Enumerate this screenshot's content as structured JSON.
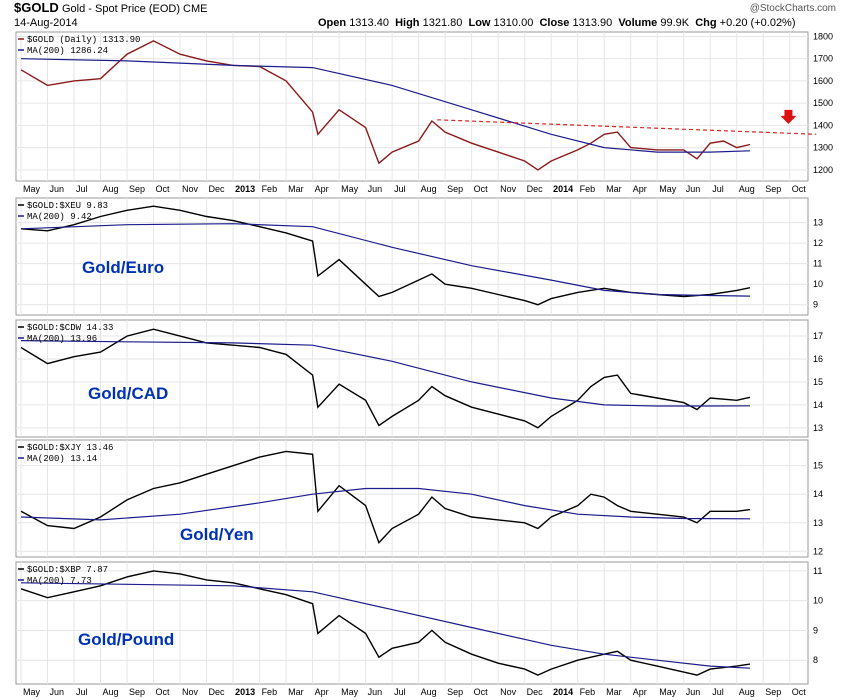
{
  "header": {
    "symbol": "$GOLD",
    "name": "Gold - Spot Price (EOD)  CME",
    "date": "14-Aug-2014",
    "open_label": "Open",
    "open": "1313.40",
    "high_label": "High",
    "high": "1321.80",
    "low_label": "Low",
    "low": "1310.00",
    "close_label": "Close",
    "close": "1313.90",
    "volume_label": "Volume",
    "volume": "99.9K",
    "chg_label": "Chg",
    "chg": "+0.20 (+0.02%)",
    "brand": "@StockCharts.com"
  },
  "x_axis": {
    "top_ticks": [
      "May",
      "Jun",
      "Jul",
      "Aug",
      "Sep",
      "Oct",
      "Nov",
      "Dec",
      "2013",
      "Feb",
      "Mar",
      "Apr",
      "May",
      "Jun",
      "Jul",
      "Aug",
      "Sep",
      "Oct",
      "Nov",
      "Dec",
      "2014",
      "Feb",
      "Mar",
      "Apr",
      "May",
      "Jun",
      "Jul",
      "Aug",
      "Sep",
      "Oct"
    ],
    "bottom_ticks": [
      "May",
      "Jun",
      "Jul",
      "Aug",
      "Sep",
      "Oct",
      "Nov",
      "Dec",
      "2013",
      "Feb",
      "Mar",
      "Apr",
      "May",
      "Jun",
      "Jul",
      "Aug",
      "Sep",
      "Oct",
      "Nov",
      "Dec",
      "2014",
      "Feb",
      "Mar",
      "Apr",
      "May",
      "Jun",
      "Jul",
      "Aug",
      "Sep",
      "Oct"
    ]
  },
  "colors": {
    "price": "#8b1a1a",
    "ratio": "#000000",
    "ma": "#1c1c8c",
    "trend": "#dd2222",
    "label": "#0033b3",
    "arrow": "#dd1111"
  },
  "chart_data": [
    {
      "type": "line",
      "legend": [
        "$GOLD (Daily) 1313.90",
        "MA(200) 1286.24"
      ],
      "ylim": [
        1150,
        1820
      ],
      "yticks": [
        1200,
        1300,
        1400,
        1500,
        1600,
        1700,
        1800
      ],
      "series": [
        {
          "name": "$GOLD (Daily) 1313.90",
          "points": [
            [
              0,
              1650
            ],
            [
              1,
              1580
            ],
            [
              2,
              1600
            ],
            [
              3,
              1610
            ],
            [
              4,
              1720
            ],
            [
              5,
              1780
            ],
            [
              6,
              1720
            ],
            [
              7,
              1690
            ],
            [
              8,
              1670
            ],
            [
              9,
              1665
            ],
            [
              10,
              1600
            ],
            [
              11,
              1460
            ],
            [
              11.2,
              1360
            ],
            [
              12,
              1470
            ],
            [
              12.5,
              1430
            ],
            [
              13,
              1390
            ],
            [
              13.5,
              1230
            ],
            [
              14,
              1280
            ],
            [
              15,
              1330
            ],
            [
              15.5,
              1420
            ],
            [
              16,
              1370
            ],
            [
              17,
              1320
            ],
            [
              18,
              1280
            ],
            [
              19,
              1240
            ],
            [
              19.5,
              1200
            ],
            [
              20,
              1240
            ],
            [
              21,
              1290
            ],
            [
              21.5,
              1320
            ],
            [
              22,
              1360
            ],
            [
              22.5,
              1370
            ],
            [
              23,
              1300
            ],
            [
              24,
              1290
            ],
            [
              25,
              1290
            ],
            [
              25.5,
              1250
            ],
            [
              26,
              1320
            ],
            [
              26.5,
              1330
            ],
            [
              27,
              1300
            ],
            [
              27.5,
              1314
            ]
          ]
        },
        {
          "name": "MA(200) 1286.24",
          "points": [
            [
              0,
              1700
            ],
            [
              4,
              1690
            ],
            [
              8,
              1670
            ],
            [
              11,
              1660
            ],
            [
              14,
              1580
            ],
            [
              17,
              1470
            ],
            [
              20,
              1360
            ],
            [
              22,
              1300
            ],
            [
              24,
              1280
            ],
            [
              26,
              1280
            ],
            [
              27.5,
              1286
            ]
          ]
        },
        {
          "name": "trendline",
          "points": [
            [
              15.7,
              1425
            ],
            [
              30,
              1360
            ]
          ]
        }
      ],
      "annotation": "down-arrow"
    },
    {
      "type": "line",
      "legend": [
        "$GOLD:$XEU 9.83",
        "MA(200) 9.42"
      ],
      "label": "Gold/Euro",
      "ylim": [
        8.5,
        14.2
      ],
      "yticks": [
        9,
        10,
        11,
        12,
        13
      ],
      "series": [
        {
          "name": "$GOLD:$XEU 9.83",
          "points": [
            [
              0,
              12.7
            ],
            [
              1,
              12.6
            ],
            [
              2,
              12.9
            ],
            [
              3,
              13.3
            ],
            [
              4,
              13.6
            ],
            [
              5,
              13.8
            ],
            [
              6,
              13.6
            ],
            [
              7,
              13.3
            ],
            [
              8,
              13.1
            ],
            [
              9,
              12.8
            ],
            [
              10,
              12.5
            ],
            [
              11,
              12.1
            ],
            [
              11.2,
              10.4
            ],
            [
              12,
              11.2
            ],
            [
              13,
              10.0
            ],
            [
              13.5,
              9.4
            ],
            [
              14,
              9.6
            ],
            [
              15,
              10.2
            ],
            [
              15.5,
              10.5
            ],
            [
              16,
              10.0
            ],
            [
              17,
              9.8
            ],
            [
              18,
              9.5
            ],
            [
              19,
              9.2
            ],
            [
              19.5,
              9.0
            ],
            [
              20,
              9.3
            ],
            [
              21,
              9.6
            ],
            [
              22,
              9.8
            ],
            [
              23,
              9.6
            ],
            [
              24,
              9.5
            ],
            [
              25,
              9.4
            ],
            [
              26,
              9.5
            ],
            [
              27,
              9.7
            ],
            [
              27.5,
              9.83
            ]
          ]
        },
        {
          "name": "MA(200) 9.42",
          "points": [
            [
              0,
              12.7
            ],
            [
              4,
              12.9
            ],
            [
              8,
              12.95
            ],
            [
              11,
              12.8
            ],
            [
              14,
              11.8
            ],
            [
              17,
              10.9
            ],
            [
              20,
              10.2
            ],
            [
              22,
              9.7
            ],
            [
              24,
              9.5
            ],
            [
              26,
              9.45
            ],
            [
              27.5,
              9.42
            ]
          ]
        }
      ]
    },
    {
      "type": "line",
      "legend": [
        "$GOLD:$CDW 14.33",
        "MA(200) 13.96"
      ],
      "label": "Gold/CAD",
      "ylim": [
        12.6,
        17.7
      ],
      "yticks": [
        13,
        14,
        15,
        16,
        17
      ],
      "series": [
        {
          "name": "$GOLD:$CDW 14.33",
          "points": [
            [
              0,
              16.5
            ],
            [
              1,
              15.8
            ],
            [
              2,
              16.1
            ],
            [
              3,
              16.3
            ],
            [
              4,
              17.0
            ],
            [
              5,
              17.3
            ],
            [
              6,
              17.0
            ],
            [
              7,
              16.7
            ],
            [
              8,
              16.6
            ],
            [
              9,
              16.5
            ],
            [
              10,
              16.2
            ],
            [
              11,
              15.3
            ],
            [
              11.2,
              13.9
            ],
            [
              12,
              14.9
            ],
            [
              13,
              14.2
            ],
            [
              13.5,
              13.1
            ],
            [
              14,
              13.5
            ],
            [
              15,
              14.2
            ],
            [
              15.5,
              14.8
            ],
            [
              16,
              14.4
            ],
            [
              17,
              13.9
            ],
            [
              18,
              13.6
            ],
            [
              19,
              13.3
            ],
            [
              19.5,
              13.0
            ],
            [
              20,
              13.5
            ],
            [
              21,
              14.2
            ],
            [
              21.5,
              14.8
            ],
            [
              22,
              15.2
            ],
            [
              22.5,
              15.3
            ],
            [
              23,
              14.5
            ],
            [
              24,
              14.3
            ],
            [
              25,
              14.1
            ],
            [
              25.5,
              13.8
            ],
            [
              26,
              14.3
            ],
            [
              27,
              14.2
            ],
            [
              27.5,
              14.33
            ]
          ]
        },
        {
          "name": "MA(200) 13.96",
          "points": [
            [
              0,
              16.8
            ],
            [
              4,
              16.75
            ],
            [
              8,
              16.7
            ],
            [
              11,
              16.6
            ],
            [
              14,
              15.9
            ],
            [
              17,
              15.0
            ],
            [
              20,
              14.3
            ],
            [
              22,
              14.0
            ],
            [
              24,
              13.95
            ],
            [
              26,
              13.95
            ],
            [
              27.5,
              13.96
            ]
          ]
        }
      ]
    },
    {
      "type": "line",
      "legend": [
        "$GOLD:$XJY 13.46",
        "MA(200) 13.14"
      ],
      "label": "Gold/Yen",
      "ylim": [
        11.8,
        15.9
      ],
      "yticks": [
        12,
        13,
        14,
        15
      ],
      "series": [
        {
          "name": "$GOLD:$XJY 13.46",
          "points": [
            [
              0,
              13.4
            ],
            [
              1,
              12.9
            ],
            [
              2,
              12.8
            ],
            [
              3,
              13.2
            ],
            [
              4,
              13.8
            ],
            [
              5,
              14.2
            ],
            [
              6,
              14.4
            ],
            [
              7,
              14.7
            ],
            [
              8,
              15.0
            ],
            [
              9,
              15.3
            ],
            [
              10,
              15.5
            ],
            [
              11,
              15.4
            ],
            [
              11.2,
              13.4
            ],
            [
              12,
              14.3
            ],
            [
              13,
              13.6
            ],
            [
              13.5,
              12.3
            ],
            [
              14,
              12.8
            ],
            [
              15,
              13.3
            ],
            [
              15.5,
              13.9
            ],
            [
              16,
              13.5
            ],
            [
              17,
              13.2
            ],
            [
              18,
              13.1
            ],
            [
              19,
              13.0
            ],
            [
              19.5,
              12.8
            ],
            [
              20,
              13.2
            ],
            [
              21,
              13.6
            ],
            [
              21.5,
              14.0
            ],
            [
              22,
              13.9
            ],
            [
              22.5,
              13.6
            ],
            [
              23,
              13.4
            ],
            [
              24,
              13.3
            ],
            [
              25,
              13.2
            ],
            [
              25.5,
              13.0
            ],
            [
              26,
              13.4
            ],
            [
              27,
              13.4
            ],
            [
              27.5,
              13.46
            ]
          ]
        },
        {
          "name": "MA(200) 13.14",
          "points": [
            [
              0,
              13.2
            ],
            [
              3,
              13.1
            ],
            [
              6,
              13.3
            ],
            [
              9,
              13.7
            ],
            [
              11,
              14.0
            ],
            [
              13,
              14.2
            ],
            [
              15,
              14.2
            ],
            [
              17,
              14.0
            ],
            [
              19,
              13.6
            ],
            [
              21,
              13.3
            ],
            [
              23,
              13.2
            ],
            [
              25,
              13.15
            ],
            [
              27.5,
              13.14
            ]
          ]
        }
      ]
    },
    {
      "type": "line",
      "legend": [
        "$GOLD:$XBP 7.87",
        "MA(200) 7.73"
      ],
      "label": "Gold/Pound",
      "ylim": [
        7.2,
        11.3
      ],
      "yticks": [
        8,
        9,
        10,
        11
      ],
      "series": [
        {
          "name": "$GOLD:$XBP 7.87",
          "points": [
            [
              0,
              10.4
            ],
            [
              1,
              10.1
            ],
            [
              2,
              10.3
            ],
            [
              3,
              10.5
            ],
            [
              4,
              10.8
            ],
            [
              5,
              11.0
            ],
            [
              6,
              10.9
            ],
            [
              7,
              10.7
            ],
            [
              8,
              10.6
            ],
            [
              9,
              10.4
            ],
            [
              10,
              10.2
            ],
            [
              11,
              9.9
            ],
            [
              11.2,
              8.9
            ],
            [
              12,
              9.5
            ],
            [
              13,
              8.9
            ],
            [
              13.5,
              8.1
            ],
            [
              14,
              8.4
            ],
            [
              15,
              8.6
            ],
            [
              15.5,
              9.0
            ],
            [
              16,
              8.6
            ],
            [
              17,
              8.2
            ],
            [
              18,
              7.9
            ],
            [
              19,
              7.7
            ],
            [
              19.5,
              7.5
            ],
            [
              20,
              7.7
            ],
            [
              21,
              8.0
            ],
            [
              22,
              8.2
            ],
            [
              22.5,
              8.3
            ],
            [
              23,
              8.0
            ],
            [
              24,
              7.8
            ],
            [
              25,
              7.6
            ],
            [
              25.5,
              7.5
            ],
            [
              26,
              7.7
            ],
            [
              27,
              7.8
            ],
            [
              27.5,
              7.87
            ]
          ]
        },
        {
          "name": "MA(200) 7.73",
          "points": [
            [
              0,
              10.6
            ],
            [
              4,
              10.55
            ],
            [
              8,
              10.5
            ],
            [
              11,
              10.3
            ],
            [
              14,
              9.7
            ],
            [
              17,
              9.1
            ],
            [
              20,
              8.5
            ],
            [
              22,
              8.2
            ],
            [
              24,
              8.0
            ],
            [
              26,
              7.8
            ],
            [
              27.5,
              7.73
            ]
          ]
        }
      ]
    }
  ]
}
